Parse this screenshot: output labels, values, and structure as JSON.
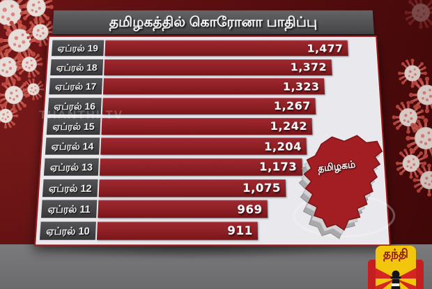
{
  "header": {
    "title": "தமிழகத்தில் கொரோனா பாதிப்பு"
  },
  "watermark": "THANTHI TV",
  "map": {
    "label": "தமிழகம்"
  },
  "logo": {
    "text": "தந்தி"
  },
  "chart_data": {
    "type": "bar",
    "orientation": "horizontal",
    "title": "தமிழகத்தில் கொரோனா பாதிப்பு",
    "categories": [
      "ஏப்ரல் 19",
      "ஏப்ரல் 18",
      "ஏப்ரல் 17",
      "ஏப்ரல் 16",
      "ஏப்ரல் 15",
      "ஏப்ரல் 14",
      "ஏப்ரல் 13",
      "ஏப்ரல் 12",
      "ஏப்ரல் 11",
      "ஏப்ரல் 10"
    ],
    "values": [
      1477,
      1372,
      1323,
      1267,
      1242,
      1204,
      1173,
      1075,
      969,
      911
    ],
    "value_labels": [
      "1,477",
      "1,372",
      "1,323",
      "1,267",
      "1,242",
      "1,204",
      "1,173",
      "1,075",
      "969",
      "911"
    ],
    "xlim": [
      0,
      1630
    ],
    "grid": false,
    "legend": null,
    "bar_color": "#8e2126",
    "value_label_position": "inside-end"
  },
  "colors": {
    "bg": "#6b1415",
    "bg_dark": "#3f0708",
    "panel": "#e8e8ed",
    "titlebar": "#636366",
    "labelbox": "#545457",
    "bar": "#8e2126",
    "band": "#7a7a7c",
    "value_text": "#ffffff",
    "map_red": "#a31e22",
    "logo_yellow": "#f3c60e",
    "logo_red": "#8c1016"
  }
}
